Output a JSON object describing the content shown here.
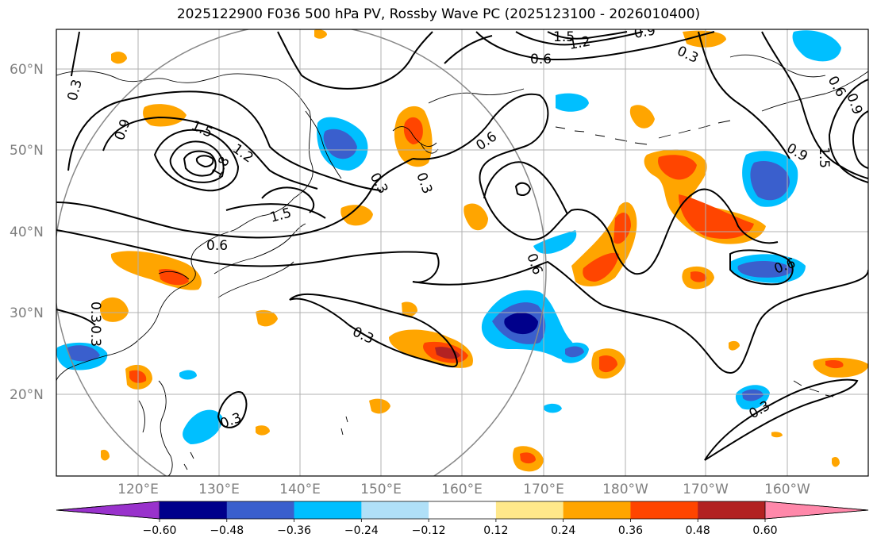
{
  "title": "2025122900 F036 500 hPa PV, Rossby Wave PC (2025123100 - 2026010400)",
  "lat_labels": [
    "60°N",
    "50°N",
    "40°N",
    "30°N",
    "20°N"
  ],
  "lon_labels": [
    "120°E",
    "130°E",
    "140°E",
    "150°E",
    "160°E",
    "170°E",
    "180°W",
    "170°W",
    "160°W"
  ],
  "contour_labels": [
    "0.3",
    "0.9",
    "1.5",
    "1.2",
    "1.8",
    "0.3",
    "0.3",
    "1.5",
    "0.6",
    "0.6",
    "0.3",
    "1.5",
    "1.2",
    "0.9",
    "0.6",
    "0.3",
    "0.6",
    "0.3",
    "0.9",
    "1.5",
    "0.9",
    "0.6",
    "0.6",
    "0.3",
    "0.3",
    "0.3"
  ],
  "colorbar": {
    "colors": [
      "#9932cc",
      "#00008b",
      "#3a5fcd",
      "#00bfff",
      "#b0e0f8",
      "#ffffff",
      "#ffe88a",
      "#ffa500",
      "#ff4500",
      "#b22222",
      "#ff88aa"
    ],
    "tick_labels": [
      "−0.60",
      "−0.48",
      "−0.36",
      "−0.24",
      "−0.12",
      "0.12",
      "0.24",
      "0.36",
      "0.48",
      "0.60"
    ]
  }
}
